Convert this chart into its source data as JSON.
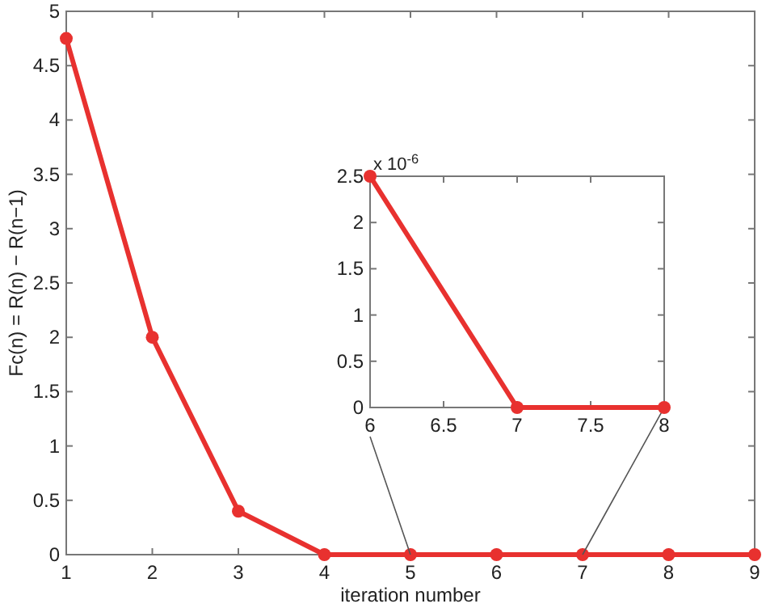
{
  "chart_data": [
    {
      "type": "line",
      "xlabel": "iteration number",
      "ylabel": "Fc(n) = R(n) − R(n−1)",
      "x": [
        1,
        2,
        3,
        4,
        5,
        6,
        7,
        8,
        9
      ],
      "series": [
        {
          "color": "#e8312f",
          "values": [
            4.75,
            2,
            0.4,
            0,
            0,
            0,
            0,
            0,
            0
          ]
        }
      ],
      "xlim": [
        1,
        9
      ],
      "xticks": [
        1,
        2,
        3,
        4,
        5,
        6,
        7,
        8,
        9
      ],
      "ylim": [
        0,
        5
      ],
      "yticks": [
        0,
        0.5,
        1,
        1.5,
        2,
        2.5,
        3,
        3.5,
        4,
        4.5,
        5
      ],
      "grid": false,
      "marker": "circle",
      "line_style": "solid"
    },
    {
      "type": "line",
      "x": [
        6,
        7,
        8
      ],
      "annotations": [
        "x 10$^{-6}$"
      ],
      "series": [
        {
          "color": "#e8312f",
          "values": [
            2.5,
            0,
            0
          ]
        }
      ],
      "xlim": [
        6,
        8
      ],
      "xticks": [
        6,
        6.5,
        7,
        7.5,
        8
      ],
      "ylim": [
        0,
        2.5
      ],
      "yticks": [
        0,
        0.5,
        1,
        1.5,
        2,
        2.5
      ],
      "grid": false,
      "marker": "circle",
      "line_style": "solid"
    }
  ]
}
